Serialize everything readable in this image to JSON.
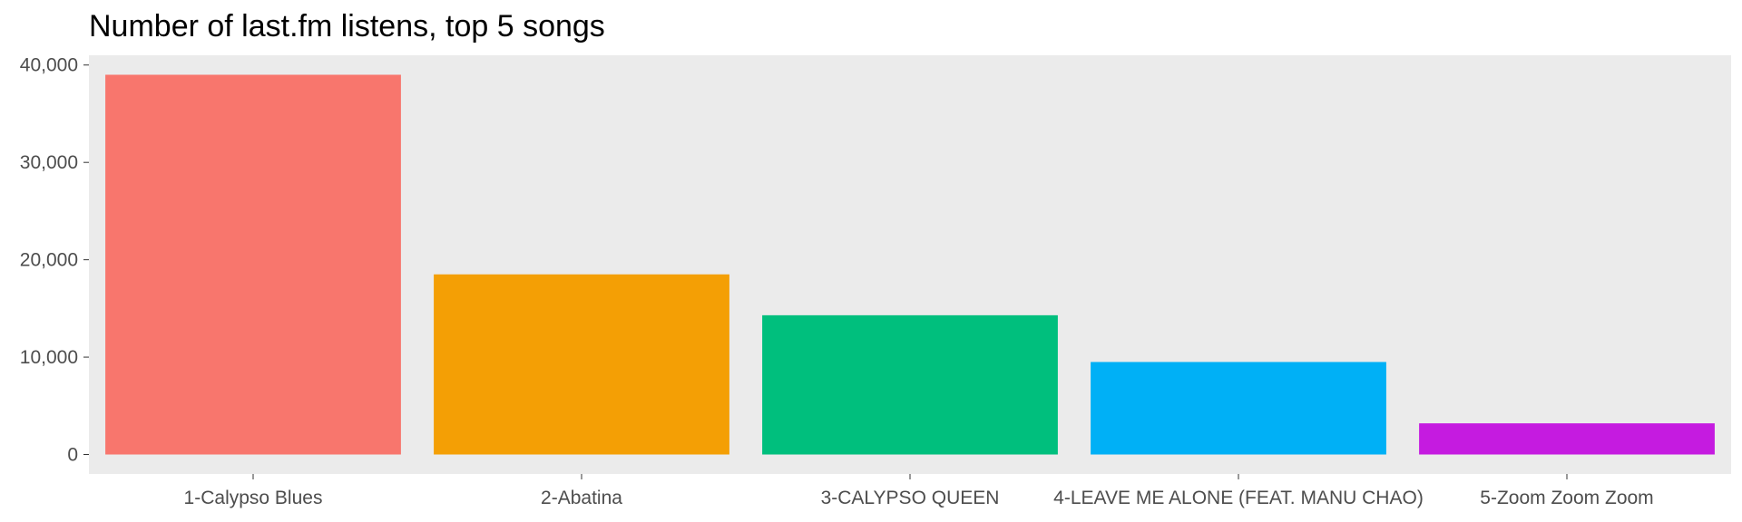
{
  "chart_data": {
    "type": "bar",
    "title": "Number of last.fm listens, top 5 songs",
    "xlabel": "",
    "ylabel": "",
    "categories": [
      "1-Calypso Blues",
      "2-Abatina",
      "3-CALYPSO QUEEN",
      "4-LEAVE ME ALONE (FEAT. MANU CHAO)",
      "5-Zoom Zoom Zoom"
    ],
    "values": [
      39000,
      18500,
      14300,
      9500,
      3200
    ],
    "colors": [
      "#F8766D",
      "#F49F05",
      "#00BF7D",
      "#00B0F6",
      "#C51BE0"
    ],
    "yticks": [
      0,
      10000,
      20000,
      30000,
      40000
    ],
    "ytick_labels": [
      "0",
      "10,000",
      "20,000",
      "30,000",
      "40,000"
    ],
    "ylim": [
      -2000,
      41000
    ],
    "grid": false,
    "panel_background": "#EBEBEB",
    "legend": "none"
  }
}
